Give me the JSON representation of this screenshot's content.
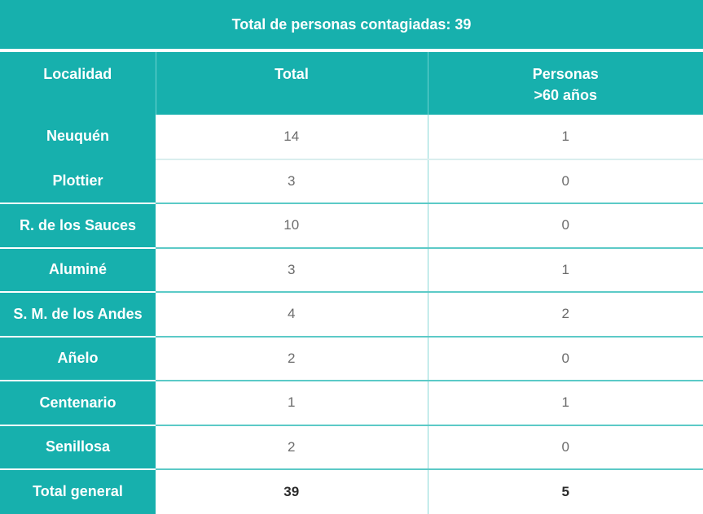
{
  "title": "Total de personas contagiadas: 39",
  "headers": {
    "localidad": "Localidad",
    "total": "Total",
    "mayores_line1": "Personas",
    "mayores_line2": ">60 años"
  },
  "rows": [
    {
      "localidad": "Neuquén",
      "total": "14",
      "mayores": "1"
    },
    {
      "localidad": "Plottier",
      "total": "3",
      "mayores": "0"
    },
    {
      "localidad": "R. de los Sauces",
      "total": "10",
      "mayores": "0"
    },
    {
      "localidad": "Aluminé",
      "total": "3",
      "mayores": "1"
    },
    {
      "localidad": "S. M. de los Andes",
      "total": "4",
      "mayores": "2"
    },
    {
      "localidad": "Añelo",
      "total": "2",
      "mayores": "0"
    },
    {
      "localidad": "Centenario",
      "total": "1",
      "mayores": "1"
    },
    {
      "localidad": "Senillosa",
      "total": "2",
      "mayores": "0"
    }
  ],
  "total_row": {
    "localidad": "Total general",
    "total": "39",
    "mayores": "5"
  },
  "colors": {
    "accent": "#17b0ad",
    "text_values": "#6b6b6b",
    "text_total": "#2b2b2b"
  }
}
